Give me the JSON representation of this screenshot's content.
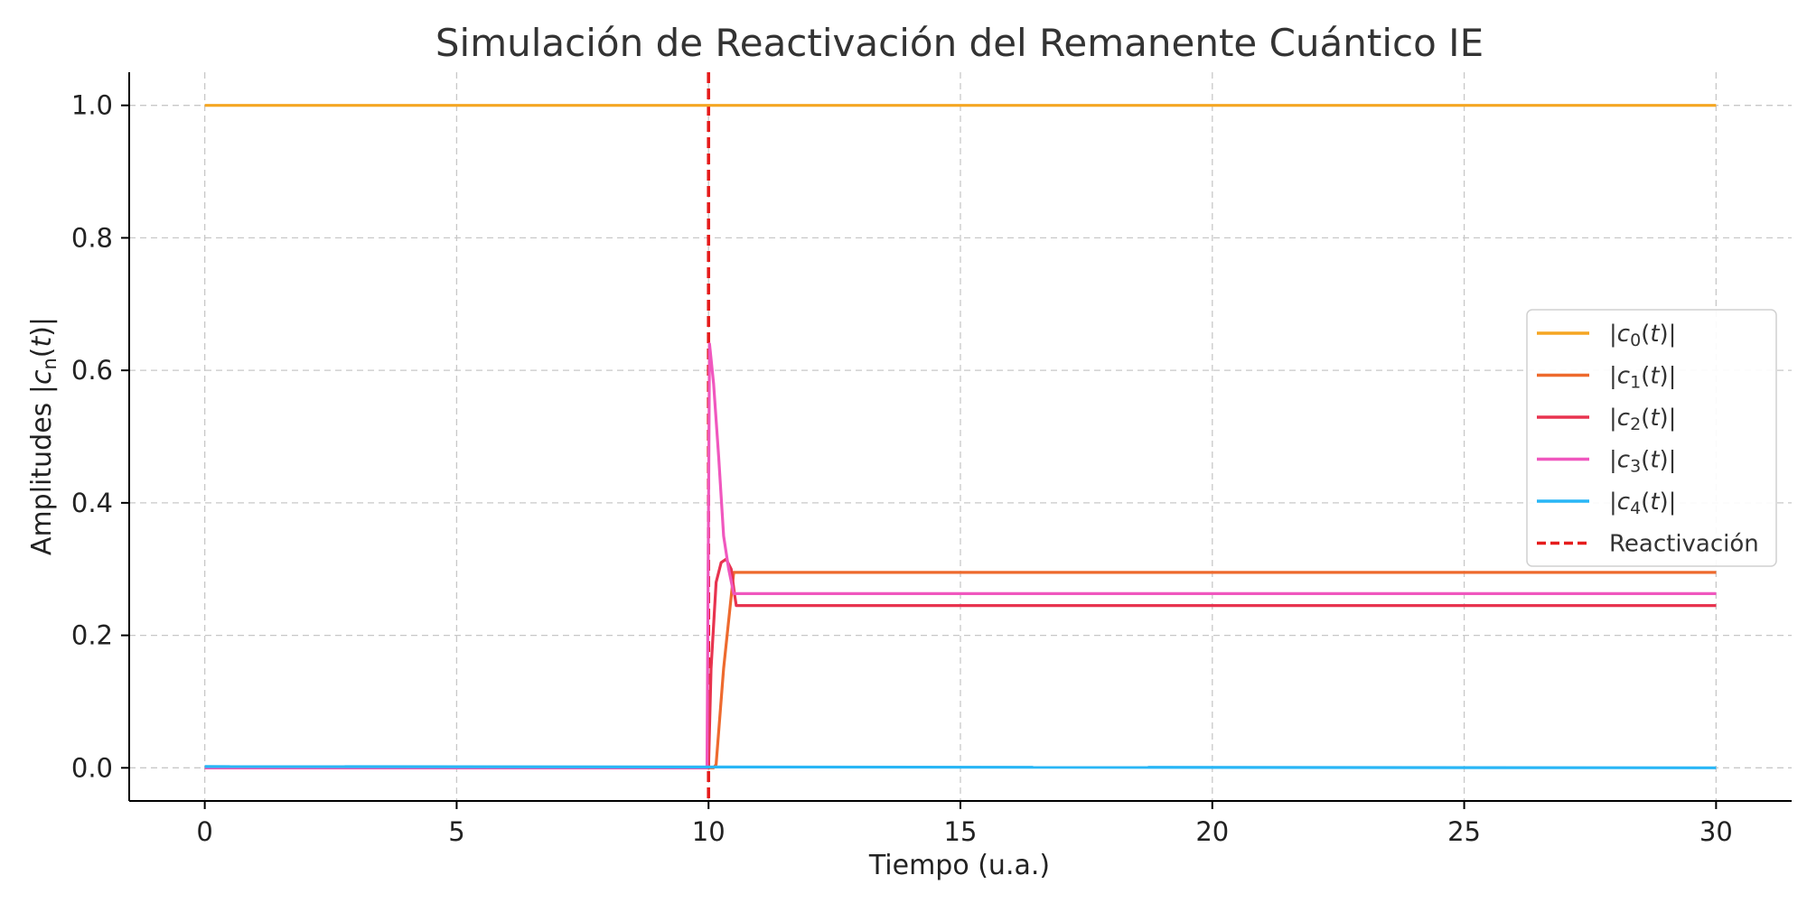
{
  "chart_data": {
    "type": "line",
    "title": "Simulación de Reactivación del Remanente Cuántico IE",
    "xlabel": "Tiempo (u.a.)",
    "ylabel": "Amplitudes |c_n(t)|",
    "xlim": [
      -1.5,
      31.5
    ],
    "ylim": [
      -0.05,
      1.05
    ],
    "xticks": [
      0,
      5,
      10,
      15,
      20,
      25,
      30
    ],
    "yticks": [
      0.0,
      0.2,
      0.4,
      0.6,
      0.8,
      1.0
    ],
    "xtick_labels": [
      "0",
      "5",
      "10",
      "15",
      "20",
      "25",
      "30"
    ],
    "ytick_labels": [
      "0.0",
      "0.2",
      "0.4",
      "0.6",
      "0.8",
      "1.0"
    ],
    "grid": true,
    "legend_position": "center-right",
    "series": [
      {
        "name": "|c_0(t)|",
        "color": "#f5a623",
        "x": [
          0,
          30
        ],
        "y": [
          1.0,
          1.0
        ]
      },
      {
        "name": "|c_1(t)|",
        "color": "#ee6a2e",
        "x": [
          0,
          10.1,
          10.15,
          10.3,
          10.5,
          30
        ],
        "y": [
          0.0,
          0.0,
          0.005,
          0.15,
          0.295,
          0.295
        ]
      },
      {
        "name": "|c_2(t)|",
        "color": "#e8334f",
        "x": [
          0,
          10.0,
          10.05,
          10.15,
          10.25,
          10.35,
          10.45,
          10.52,
          10.55,
          30
        ],
        "y": [
          0.0,
          0.0,
          0.15,
          0.28,
          0.31,
          0.315,
          0.3,
          0.26,
          0.245,
          0.245
        ]
      },
      {
        "name": "|c_3(t)|",
        "color": "#f057be",
        "x": [
          0,
          9.97,
          10.02,
          10.1,
          10.2,
          10.3,
          10.4,
          10.5,
          30
        ],
        "y": [
          0.0,
          0.0,
          0.64,
          0.58,
          0.47,
          0.35,
          0.3,
          0.263,
          0.263
        ]
      },
      {
        "name": "|c_4(t)|",
        "color": "#29b6f6",
        "x": [
          0,
          30
        ],
        "y": [
          0.002,
          0.0
        ]
      }
    ],
    "vlines": [
      {
        "name": "Reactivación",
        "x": 10,
        "color": "#e51c1c",
        "style": "dashed"
      }
    ]
  }
}
